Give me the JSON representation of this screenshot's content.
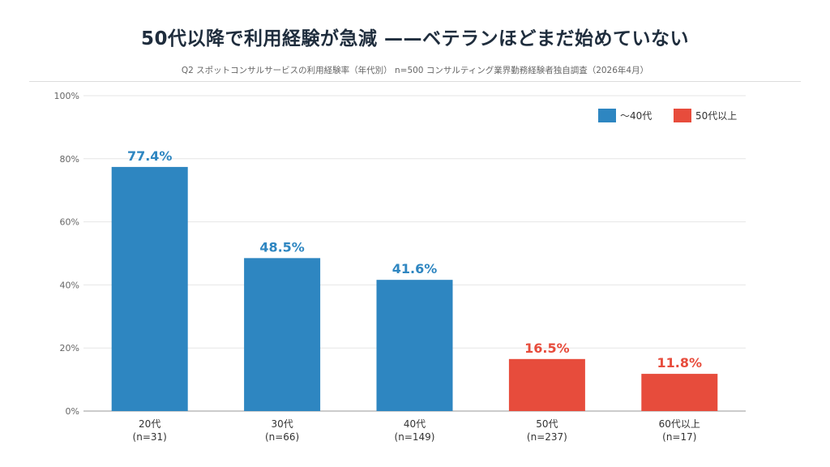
{
  "header": {
    "title": "50代以降で利用経験が急減 ——ベテランほどまだ始めていない",
    "subtitle": "Q2 スポットコンサルサービスの利用経験率（年代別） n=500 コンサルティング業界勤務経験者独自調査（2026年4月）"
  },
  "chart_data": {
    "type": "bar",
    "categories": [
      "20代",
      "30代",
      "40代",
      "50代",
      "60代以上"
    ],
    "category_counts": [
      "(n=31)",
      "(n=66)",
      "(n=149)",
      "(n=237)",
      "(n=17)"
    ],
    "values": [
      77.4,
      48.5,
      41.6,
      16.5,
      11.8
    ],
    "data_labels": [
      "77.4%",
      "48.5%",
      "41.6%",
      "16.5%",
      "11.8%"
    ],
    "groups": [
      "~40",
      "~40",
      "~40",
      "50+",
      "50+"
    ],
    "legend": [
      {
        "key": "~40",
        "label": "〜40代",
        "color": "#2e86c1"
      },
      {
        "key": "50+",
        "label": "50代以上",
        "color": "#e74c3c"
      }
    ],
    "ylim": [
      0,
      100
    ],
    "yticks": [
      0,
      20,
      40,
      60,
      80,
      100
    ],
    "ytick_labels": [
      "0%",
      "20%",
      "40%",
      "60%",
      "80%",
      "100%"
    ],
    "grid": true,
    "legend_position": "top-right",
    "xlabel": "",
    "ylabel": ""
  }
}
